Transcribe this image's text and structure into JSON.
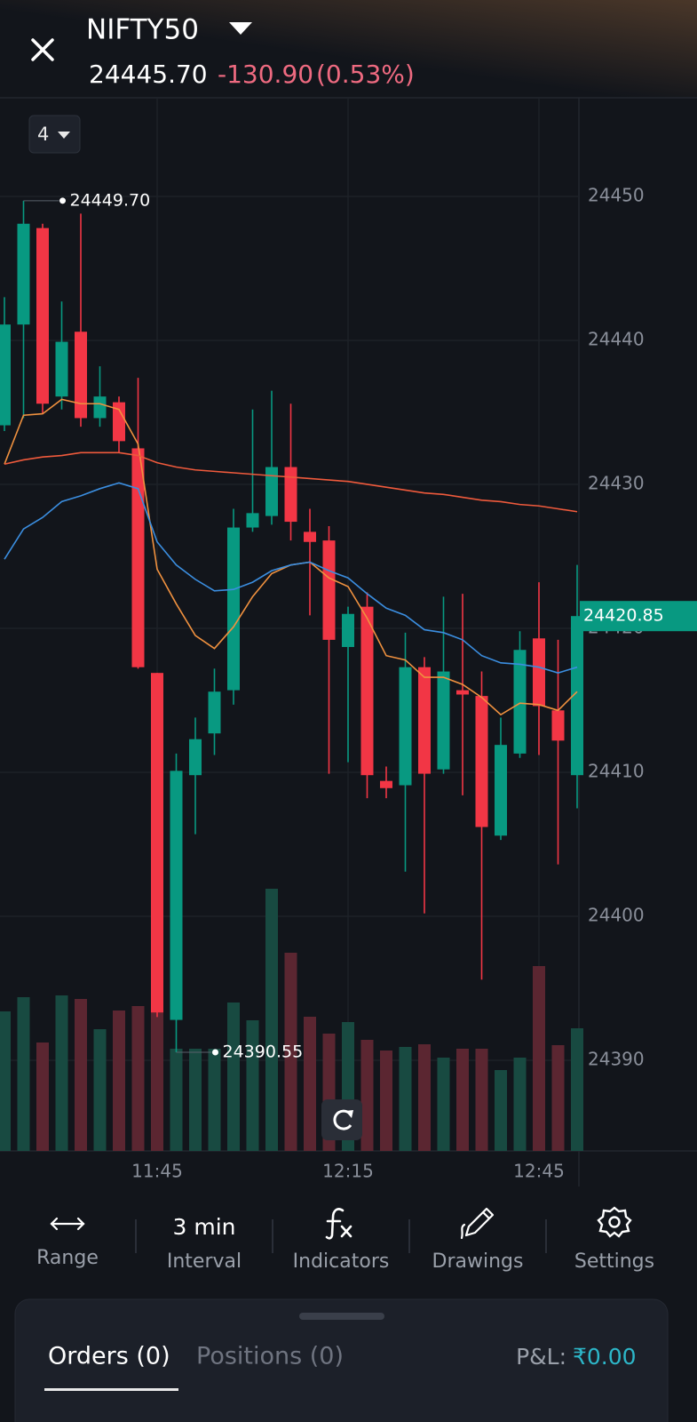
{
  "header": {
    "symbol": "NIFTY50",
    "price": "24445.70",
    "change": "-130.90",
    "change_pct": "(0.53%)"
  },
  "interval_selector": "4",
  "chart_data": {
    "type": "candlestick",
    "categories": [
      null,
      null,
      null,
      null,
      null,
      null,
      null,
      null,
      "11:45",
      null,
      null,
      null,
      null,
      null,
      null,
      null,
      null,
      null,
      "12:15",
      null,
      null,
      null,
      null,
      null,
      null,
      null,
      null,
      null,
      "12:45",
      null,
      null
    ],
    "open": [
      24434.1,
      24441.1,
      24447.8,
      24436.1,
      24440.6,
      24434.6,
      24435.7,
      24432.5,
      24416.9,
      24392.8,
      24409.8,
      24412.7,
      24415.7,
      24427.0,
      24427.8,
      24431.2,
      24426.7,
      24426.1,
      24418.7,
      24421.5,
      24409.4,
      24409.1,
      24417.3,
      24410.2,
      24415.7,
      24415.3,
      24405.6,
      24411.3,
      24419.3,
      24414.3,
      24409.8
    ],
    "high": [
      24443.0,
      24449.7,
      24448.1,
      24442.7,
      24448.8,
      24438.2,
      24436.1,
      24437.4,
      24416.9,
      24411.3,
      24413.8,
      24417.2,
      24428.3,
      24435.2,
      24436.5,
      24435.6,
      24428.3,
      24427.1,
      24421.5,
      24422.5,
      24410.4,
      24419.7,
      24418.0,
      24422.2,
      24422.4,
      24417.0,
      24413.8,
      24419.8,
      24423.2,
      24419.2,
      24424.4
    ],
    "low": [
      24433.7,
      24434.6,
      24434.9,
      24435.2,
      24434.0,
      24434.0,
      24432.2,
      24417.2,
      24393.0,
      24390.55,
      24405.7,
      24411.2,
      24414.7,
      24426.7,
      24427.2,
      24426.1,
      24420.9,
      24409.9,
      24410.7,
      24408.2,
      24408.2,
      24403.1,
      24400.2,
      24409.9,
      24408.4,
      24395.6,
      24405.3,
      24411.0,
      24411.2,
      24403.6,
      24407.5
    ],
    "close": [
      24441.1,
      24448.1,
      24435.6,
      24439.9,
      24434.6,
      24436.1,
      24433.0,
      24417.3,
      24393.3,
      24410.1,
      24412.3,
      24415.6,
      24427.0,
      24428.0,
      24431.2,
      24427.4,
      24426.0,
      24419.2,
      24421.0,
      24409.8,
      24408.9,
      24417.3,
      24409.9,
      24417.0,
      24415.4,
      24406.2,
      24411.9,
      24418.5,
      24414.6,
      24412.2,
      24420.85
    ],
    "volume": [
      157,
      173,
      122,
      175,
      171,
      137,
      158,
      163,
      155,
      115,
      115,
      115,
      167,
      147,
      295,
      223,
      151,
      132,
      145,
      125,
      113,
      117,
      120,
      105,
      115,
      115,
      91,
      105,
      208,
      119,
      138
    ],
    "up_color": "#089981",
    "down_color": "#f23645",
    "overlays": [
      {
        "color": "#f0913f",
        "values": [
          24431.4,
          24434.8,
          24434.9,
          24435.9,
          24435.6,
          24435.6,
          24435.2,
          24432.8,
          24424.1,
          24421.7,
          24419.5,
          24418.6,
          24420.1,
          24422.2,
          24423.8,
          24424.4,
          24424.6,
          24423.5,
          24422.9,
          24420.7,
          24418.1,
          24417.8,
          24416.6,
          24416.6,
          24416.1,
          24415.2,
          24414.0,
          24414.8,
          24414.7,
          24414.3,
          24415.6
        ]
      },
      {
        "color": "#ef5a3c",
        "values": [
          24431.4,
          24431.7,
          24431.9,
          24432.0,
          24432.2,
          24432.2,
          24432.2,
          24432.0,
          24431.5,
          24431.2,
          24431.0,
          24430.9,
          24430.8,
          24430.7,
          24430.6,
          24430.5,
          24430.4,
          24430.3,
          24430.2,
          24430.0,
          24429.8,
          24429.6,
          24429.4,
          24429.3,
          24429.1,
          24428.9,
          24428.8,
          24428.6,
          24428.5,
          24428.3,
          24428.1
        ]
      },
      {
        "color": "#3b8ee0",
        "values": [
          24424.8,
          24426.9,
          24427.7,
          24428.8,
          24429.2,
          24429.7,
          24430.1,
          24429.7,
          24426.0,
          24424.4,
          24423.4,
          24422.6,
          24422.7,
          24423.2,
          24424.0,
          24424.4,
          24424.6,
          24424.0,
          24423.5,
          24422.4,
          24421.4,
          24420.9,
          24419.9,
          24419.7,
          24419.2,
          24418.1,
          24417.6,
          24417.5,
          24417.3,
          24416.9,
          24417.3
        ]
      }
    ],
    "ylim": [
      24383.7,
      24456.85
    ],
    "yticks": [
      24390,
      24400,
      24410,
      24420,
      24430,
      24440,
      24450
    ],
    "grid": true,
    "annotations": [
      {
        "value": 24449.7,
        "label": "24449.70"
      },
      {
        "value": 24390.55,
        "label": "24390.55"
      }
    ],
    "last_price": {
      "value": 24420.85,
      "label": "24420.85"
    }
  },
  "toolbar": [
    {
      "label": "Range"
    },
    {
      "value": "3 min",
      "label": "Interval"
    },
    {
      "label": "Indicators"
    },
    {
      "label": "Drawings"
    },
    {
      "label": "Settings"
    }
  ],
  "panel": {
    "tabs": [
      "Orders (0)",
      "Positions (0)"
    ],
    "pnl_label": "P&L:",
    "pnl_value": "₹0.00"
  }
}
